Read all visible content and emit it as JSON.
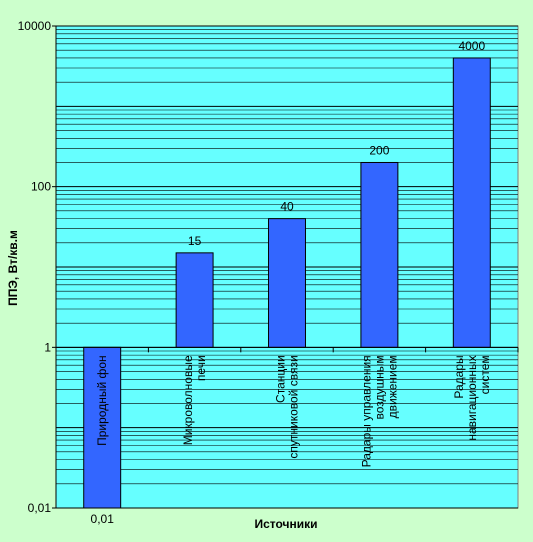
{
  "chart_data": {
    "type": "bar",
    "xlabel": "Источники",
    "ylabel": "ППЭ, Вт/кв.м",
    "yscale": "log",
    "ylim": [
      0.01,
      10000
    ],
    "yticks": [
      {
        "value": 0.01,
        "label": "0,01"
      },
      {
        "value": 1,
        "label": "1"
      },
      {
        "value": 100,
        "label": "100"
      },
      {
        "value": 10000,
        "label": "10000"
      }
    ],
    "categories": [
      {
        "lines": [
          "Природный фон"
        ]
      },
      {
        "lines": [
          "Микроволновые",
          "печи"
        ]
      },
      {
        "lines": [
          "Станции",
          "спутниковой связи"
        ]
      },
      {
        "lines": [
          "Радары управления",
          "воздушным",
          "движением"
        ]
      },
      {
        "lines": [
          "Радары",
          "навигационных",
          "систем"
        ]
      }
    ],
    "values": [
      0.01,
      15,
      40,
      200,
      4000
    ],
    "data_labels": [
      "0,01",
      "15",
      "40",
      "200",
      "4000"
    ],
    "grid": true,
    "legend": "none",
    "colors": {
      "background": "#ccffcc",
      "plot_area": "#66ffff",
      "bar": "#3366ff",
      "gridline": "#000000"
    }
  }
}
